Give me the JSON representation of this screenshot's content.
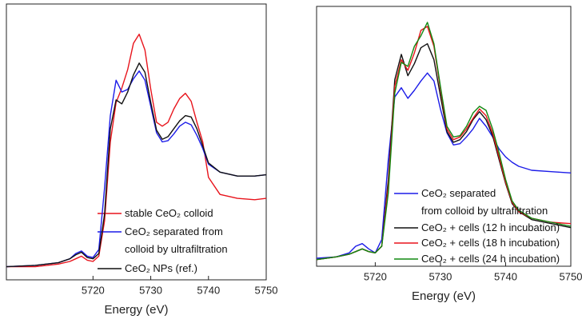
{
  "chart_data": [
    {
      "type": "line",
      "xlabel": "Energy (eV)",
      "x": [
        5705,
        5710,
        5714,
        5716,
        5717,
        5718,
        5719,
        5720,
        5721,
        5722,
        5723,
        5724,
        5725,
        5726,
        5727,
        5728,
        5729,
        5730,
        5731,
        5732,
        5733,
        5734,
        5735,
        5736,
        5737,
        5738,
        5739,
        5740,
        5742,
        5745,
        5748,
        5750
      ],
      "xlim": [
        5705,
        5750
      ],
      "xticks": [
        5720,
        5730,
        5740,
        5750
      ],
      "ylim": [
        -0.1,
        2.0
      ],
      "series": [
        {
          "name": "stable CeO₂ colloid",
          "color": "#e8141c",
          "values": [
            0,
            0.0,
            0.02,
            0.04,
            0.06,
            0.08,
            0.05,
            0.04,
            0.08,
            0.35,
            0.95,
            1.25,
            1.36,
            1.5,
            1.7,
            1.77,
            1.65,
            1.35,
            1.1,
            1.07,
            1.1,
            1.2,
            1.28,
            1.32,
            1.26,
            1.1,
            0.95,
            0.68,
            0.55,
            0.52,
            0.51,
            0.52
          ]
        },
        {
          "name": "CeO₂ separated from\ncolloid by ultrafiltration",
          "color": "#1c1ce8",
          "values": [
            0,
            0.01,
            0.03,
            0.06,
            0.1,
            0.12,
            0.08,
            0.07,
            0.13,
            0.6,
            1.15,
            1.42,
            1.33,
            1.35,
            1.43,
            1.49,
            1.42,
            1.22,
            1.02,
            0.95,
            0.96,
            1.01,
            1.07,
            1.1,
            1.08,
            1.0,
            0.9,
            0.78,
            0.72,
            0.69,
            0.69,
            0.7
          ]
        },
        {
          "name": "CeO₂ NPs (ref.)",
          "color": "#111111",
          "values": [
            0,
            0.01,
            0.03,
            0.06,
            0.09,
            0.11,
            0.07,
            0.06,
            0.1,
            0.4,
            1.05,
            1.27,
            1.24,
            1.33,
            1.46,
            1.55,
            1.48,
            1.25,
            1.04,
            0.97,
            0.99,
            1.05,
            1.11,
            1.15,
            1.14,
            1.05,
            0.92,
            0.79,
            0.72,
            0.69,
            0.69,
            0.7
          ]
        }
      ]
    },
    {
      "type": "line",
      "xlabel": "Energy (eV)",
      "x": [
        5711,
        5714,
        5716,
        5717,
        5718,
        5719,
        5720,
        5721,
        5722,
        5723,
        5724,
        5725,
        5726,
        5727,
        5728,
        5729,
        5730,
        5731,
        5732,
        5733,
        5734,
        5735,
        5736,
        5737,
        5738,
        5739,
        5740,
        5741,
        5742,
        5744,
        5747,
        5750
      ],
      "xlim": [
        5711,
        5750
      ],
      "xticks": [
        5720,
        5730,
        5740,
        5750
      ],
      "ylim": [
        -0.05,
        1.9
      ],
      "series": [
        {
          "name": "CeO₂ separated\nfrom colloid by ultrafiltration",
          "color": "#1c1ce8",
          "values": [
            0.01,
            0.02,
            0.05,
            0.1,
            0.12,
            0.08,
            0.05,
            0.15,
            0.75,
            1.22,
            1.29,
            1.21,
            1.27,
            1.34,
            1.4,
            1.34,
            1.13,
            0.95,
            0.86,
            0.87,
            0.92,
            0.98,
            1.06,
            1.0,
            0.92,
            0.83,
            0.77,
            0.73,
            0.7,
            0.67,
            0.66,
            0.65
          ]
        },
        {
          "name": "CeO₂ + cells (12 h incubation)",
          "color": "#111111",
          "values": [
            0.0,
            0.02,
            0.04,
            0.06,
            0.08,
            0.06,
            0.05,
            0.1,
            0.6,
            1.35,
            1.54,
            1.38,
            1.47,
            1.59,
            1.62,
            1.5,
            1.23,
            0.96,
            0.88,
            0.9,
            0.96,
            1.05,
            1.11,
            1.05,
            0.93,
            0.75,
            0.57,
            0.42,
            0.36,
            0.3,
            0.27,
            0.24
          ]
        },
        {
          "name": "CeO₂ + cells (18 h incubation)",
          "color": "#e8141c",
          "values": [
            0.0,
            0.02,
            0.04,
            0.06,
            0.08,
            0.06,
            0.05,
            0.1,
            0.55,
            1.3,
            1.5,
            1.42,
            1.55,
            1.72,
            1.75,
            1.6,
            1.28,
            0.98,
            0.9,
            0.92,
            0.98,
            1.06,
            1.13,
            1.08,
            0.95,
            0.77,
            0.58,
            0.43,
            0.36,
            0.31,
            0.28,
            0.27
          ]
        },
        {
          "name": "CeO₂ + cells (24 h incubation)",
          "color": "#118811",
          "values": [
            0.0,
            0.02,
            0.04,
            0.06,
            0.08,
            0.06,
            0.05,
            0.1,
            0.5,
            1.25,
            1.48,
            1.45,
            1.6,
            1.68,
            1.78,
            1.62,
            1.3,
            1.0,
            0.92,
            0.93,
            1.0,
            1.1,
            1.15,
            1.12,
            0.98,
            0.8,
            0.6,
            0.44,
            0.37,
            0.31,
            0.28,
            0.25
          ]
        }
      ]
    }
  ]
}
